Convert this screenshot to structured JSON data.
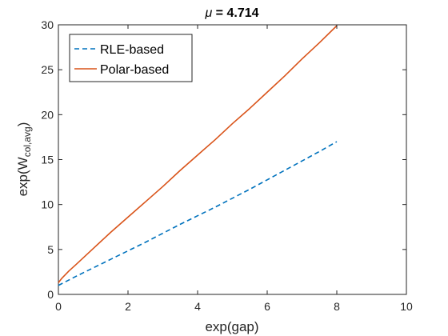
{
  "chart_data": {
    "type": "line",
    "title_prefix": "μ",
    "title_suffix": " = 4.714",
    "xlabel": "exp(gap)",
    "ylabel_main": "exp(W",
    "ylabel_sub": "col,avg",
    "ylabel_close": ")",
    "xlim": [
      0,
      10
    ],
    "ylim": [
      0,
      30
    ],
    "xticks": [
      0,
      2,
      4,
      6,
      8,
      10
    ],
    "yticks": [
      0,
      5,
      10,
      15,
      20,
      25,
      30
    ],
    "grid": false,
    "legend_placement": "top-left",
    "series": [
      {
        "name": "RLE-based",
        "color": "#0072BD",
        "style": "dashed",
        "x": [
          0,
          0.5,
          1,
          1.5,
          2,
          2.5,
          3,
          3.5,
          4,
          4.5,
          5,
          5.5,
          6,
          6.5,
          7,
          7.5,
          8
        ],
        "y": [
          1.0,
          2.0,
          2.95,
          3.9,
          4.85,
          5.8,
          6.8,
          7.8,
          8.75,
          9.7,
          10.7,
          11.7,
          12.75,
          13.8,
          14.85,
          15.9,
          17.0
        ]
      },
      {
        "name": "Polar-based",
        "color": "#D95319",
        "style": "solid",
        "x": [
          0,
          0.1,
          0.3,
          0.5,
          1,
          1.5,
          2,
          2.5,
          3,
          3.5,
          4,
          4.5,
          5,
          5.5,
          6,
          6.5,
          7,
          7.5,
          8
        ],
        "y": [
          1.3,
          1.8,
          2.6,
          3.3,
          5.1,
          6.9,
          8.6,
          10.3,
          12.0,
          13.8,
          15.5,
          17.2,
          19.0,
          20.7,
          22.5,
          24.3,
          26.2,
          28.0,
          29.9
        ]
      }
    ]
  }
}
